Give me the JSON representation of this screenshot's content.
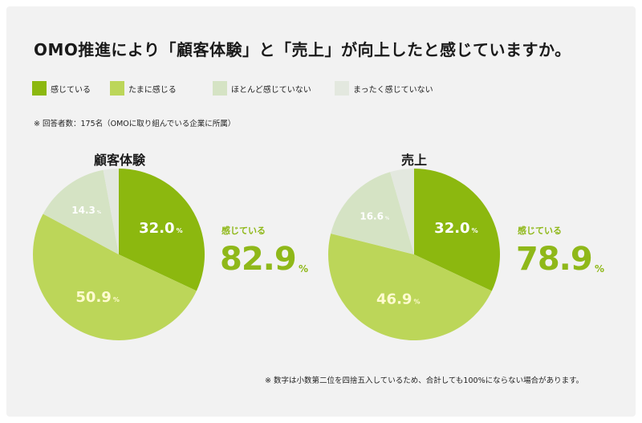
{
  "title": "OMO推進により「顧客体験」と「売上」が向上したと感じていますか。",
  "legend": [
    {
      "label": "感じている",
      "color": "#8cb80f"
    },
    {
      "label": "たまに感じる",
      "color": "#bcd659"
    },
    {
      "label": "ほとんど感じていない",
      "color": "#d5e3c4"
    },
    {
      "label": "まったく感じていない",
      "color": "#e3e8df"
    }
  ],
  "note_top": "※ 回答者数：175名（OMOに取り組んでいる企業に所属）",
  "note_bottom": "※ 数字は小数第二位を四捨五入しているため、合計しても100%にならない場合があります。",
  "chart_data": [
    {
      "type": "pie",
      "title": "顧客体験",
      "categories": [
        "感じている",
        "たまに感じる",
        "ほとんど感じていない",
        "まったく感じていない"
      ],
      "values": [
        32.0,
        50.9,
        14.3,
        2.9
      ],
      "data_labels": [
        "32.0",
        "50.9",
        "14.3",
        ""
      ],
      "colors": [
        "#8cb80f",
        "#bcd659",
        "#d5e3c4",
        "#e3e8df"
      ],
      "summary": {
        "label": "感じている",
        "value": "82.9",
        "unit": "%"
      }
    },
    {
      "type": "pie",
      "title": "売上",
      "categories": [
        "感じている",
        "たまに感じる",
        "ほとんど感じていない",
        "まったく感じていない"
      ],
      "values": [
        32.0,
        46.9,
        16.6,
        4.5
      ],
      "data_labels": [
        "32.0",
        "46.9",
        "16.6",
        ""
      ],
      "colors": [
        "#8cb80f",
        "#bcd659",
        "#d5e3c4",
        "#e3e8df"
      ],
      "summary": {
        "label": "感じている",
        "value": "78.9",
        "unit": "%"
      }
    }
  ],
  "percent_unit": "%"
}
